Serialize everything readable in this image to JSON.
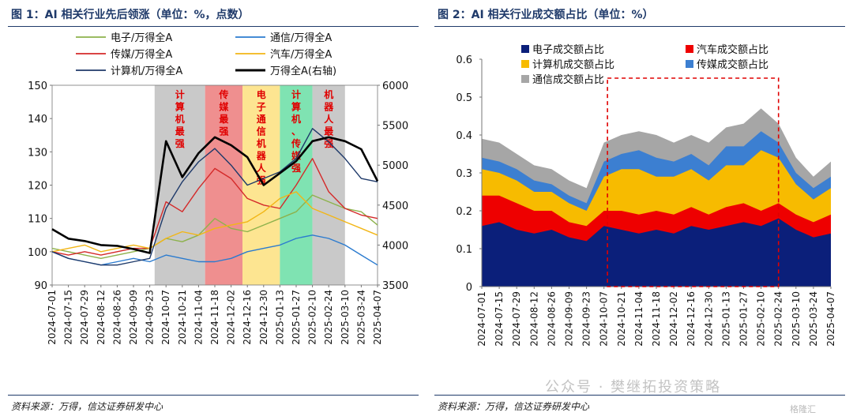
{
  "watermark": "公众号 · 樊继拓投资策略",
  "corner_badge": "格隆汇",
  "chart_data": [
    {
      "type": "line",
      "title": "图 1：AI 相关行业先后领涨（单位：%，点数）",
      "source": "资料来源：万得，信达证券研发中心",
      "dates": [
        "2024-07-01",
        "2024-07-15",
        "2024-07-29",
        "2024-08-12",
        "2024-08-26",
        "2024-09-09",
        "2024-09-23",
        "2024-10-07",
        "2024-10-21",
        "2024-11-04",
        "2024-11-18",
        "2024-12-02",
        "2024-12-16",
        "2024-12-30",
        "2025-01-13",
        "2025-01-27",
        "2025-02-10",
        "2025-02-24",
        "2025-03-10",
        "2025-03-24",
        "2025-04-07"
      ],
      "y_left": {
        "min": 90,
        "max": 150,
        "ticks": [
          90,
          100,
          110,
          120,
          130,
          140,
          150
        ]
      },
      "y_right": {
        "min": 3500,
        "max": 6000,
        "ticks": [
          3500,
          4000,
          4500,
          5000,
          5500,
          6000
        ]
      },
      "legend": [
        "电子/万得全A",
        "通信/万得全A",
        "传媒/万得全A",
        "汽车/万得全A",
        "计算机/万得全A",
        "万得全A(右轴)"
      ],
      "regions": [
        {
          "start": 6.3,
          "end": 9.4,
          "color": "#c9c9c9",
          "label": [
            "计",
            "算",
            "机",
            "最",
            "强"
          ]
        },
        {
          "start": 9.4,
          "end": 11.7,
          "color": "#ef8f8f",
          "label": [
            "传",
            "媒",
            "最",
            "强"
          ]
        },
        {
          "start": 11.7,
          "end": 14.0,
          "color": "#fde591",
          "label": [
            "电",
            "子",
            "通",
            "信",
            "机",
            "器",
            "人",
            "强"
          ]
        },
        {
          "start": 14.0,
          "end": 16.0,
          "color": "#7fe3b2",
          "label": [
            "计",
            "算",
            "机",
            "、",
            "传",
            "媒",
            "强"
          ]
        },
        {
          "start": 16.0,
          "end": 18.0,
          "color": "#c9c9c9",
          "label": [
            "机",
            "器",
            "人",
            "最",
            "强"
          ]
        }
      ],
      "series": [
        {
          "name": "电子/万得全A",
          "axis": "left",
          "color": "#8db24c",
          "values": [
            101,
            100,
            99,
            98,
            99,
            100,
            101,
            104,
            103,
            105,
            110,
            107,
            106,
            108,
            110,
            112,
            117,
            115,
            113,
            112,
            108
          ]
        },
        {
          "name": "通信/万得全A",
          "axis": "left",
          "color": "#2b7bcf",
          "values": [
            100,
            98,
            97,
            96,
            97,
            98,
            97,
            99,
            98,
            97,
            97,
            98,
            100,
            101,
            102,
            104,
            105,
            104,
            102,
            99,
            96
          ]
        },
        {
          "name": "传媒/万得全A",
          "axis": "left",
          "color": "#d42a2a",
          "values": [
            100,
            99,
            100,
            99,
            100,
            101,
            101,
            115,
            112,
            119,
            125,
            122,
            116,
            114,
            113,
            120,
            128,
            118,
            113,
            111,
            110
          ]
        },
        {
          "name": "汽车/万得全A",
          "axis": "left",
          "color": "#f2b616",
          "values": [
            100,
            101,
            102,
            100,
            101,
            102,
            101,
            104,
            106,
            105,
            107,
            108,
            109,
            112,
            116,
            118,
            113,
            111,
            109,
            107,
            105
          ]
        },
        {
          "name": "计算机/万得全A",
          "axis": "left",
          "color": "#1f3a6a",
          "values": [
            100,
            98,
            97,
            96,
            96,
            97,
            98,
            113,
            121,
            127,
            131,
            126,
            120,
            122,
            124,
            128,
            137,
            133,
            128,
            122,
            121
          ]
        },
        {
          "name": "万得全A(右轴)",
          "axis": "right",
          "color": "#000000",
          "values": [
            4200,
            4080,
            4050,
            4000,
            3990,
            3950,
            3900,
            5300,
            4850,
            5150,
            5350,
            5250,
            5100,
            4750,
            4900,
            5050,
            5300,
            5350,
            5300,
            5200,
            4800
          ]
        }
      ]
    },
    {
      "type": "area",
      "title": "图 2：AI 相关行业成交额占比（单位：%）",
      "source": "资料来源：万得，信达证券研发中心",
      "dates": [
        "2024-07-01",
        "2024-07-15",
        "2024-07-29",
        "2024-08-12",
        "2024-08-26",
        "2024-09-09",
        "2024-09-23",
        "2024-10-07",
        "2024-10-21",
        "2024-11-04",
        "2024-11-18",
        "2024-12-02",
        "2024-12-16",
        "2024-12-30",
        "2025-01-13",
        "2025-01-27",
        "2025-02-10",
        "2025-02-24",
        "2025-03-10",
        "2025-03-24",
        "2025-04-07"
      ],
      "ylim": [
        0,
        0.6
      ],
      "yticks": [
        0,
        0.1,
        0.2,
        0.3,
        0.4,
        0.5,
        0.6
      ],
      "highlight_box": {
        "start": 7.2,
        "end": 17.0,
        "top": 0.55
      },
      "series": [
        {
          "name": "电子成交额占比",
          "color": "#0b1f7a",
          "values": [
            0.16,
            0.17,
            0.15,
            0.14,
            0.15,
            0.13,
            0.12,
            0.16,
            0.15,
            0.14,
            0.15,
            0.14,
            0.16,
            0.15,
            0.16,
            0.17,
            0.16,
            0.18,
            0.15,
            0.13,
            0.14
          ]
        },
        {
          "name": "汽车成交额占比",
          "color": "#ee0000",
          "values": [
            0.08,
            0.07,
            0.07,
            0.06,
            0.05,
            0.04,
            0.04,
            0.04,
            0.05,
            0.05,
            0.05,
            0.05,
            0.05,
            0.04,
            0.05,
            0.05,
            0.04,
            0.04,
            0.04,
            0.04,
            0.05
          ]
        },
        {
          "name": "计算机成交额占比",
          "color": "#f7bb00",
          "values": [
            0.07,
            0.06,
            0.06,
            0.05,
            0.05,
            0.05,
            0.04,
            0.09,
            0.11,
            0.12,
            0.09,
            0.1,
            0.1,
            0.09,
            0.11,
            0.1,
            0.16,
            0.12,
            0.08,
            0.06,
            0.07
          ]
        },
        {
          "name": "传媒成交额占比",
          "color": "#3c7fd1",
          "values": [
            0.03,
            0.03,
            0.03,
            0.03,
            0.02,
            0.02,
            0.02,
            0.04,
            0.04,
            0.05,
            0.05,
            0.04,
            0.04,
            0.04,
            0.05,
            0.05,
            0.05,
            0.04,
            0.03,
            0.03,
            0.03
          ]
        },
        {
          "name": "通信成交额占比",
          "color": "#a6a6a6",
          "values": [
            0.05,
            0.05,
            0.04,
            0.04,
            0.04,
            0.04,
            0.04,
            0.05,
            0.05,
            0.05,
            0.06,
            0.05,
            0.05,
            0.06,
            0.05,
            0.06,
            0.06,
            0.05,
            0.04,
            0.03,
            0.04
          ]
        }
      ]
    }
  ]
}
